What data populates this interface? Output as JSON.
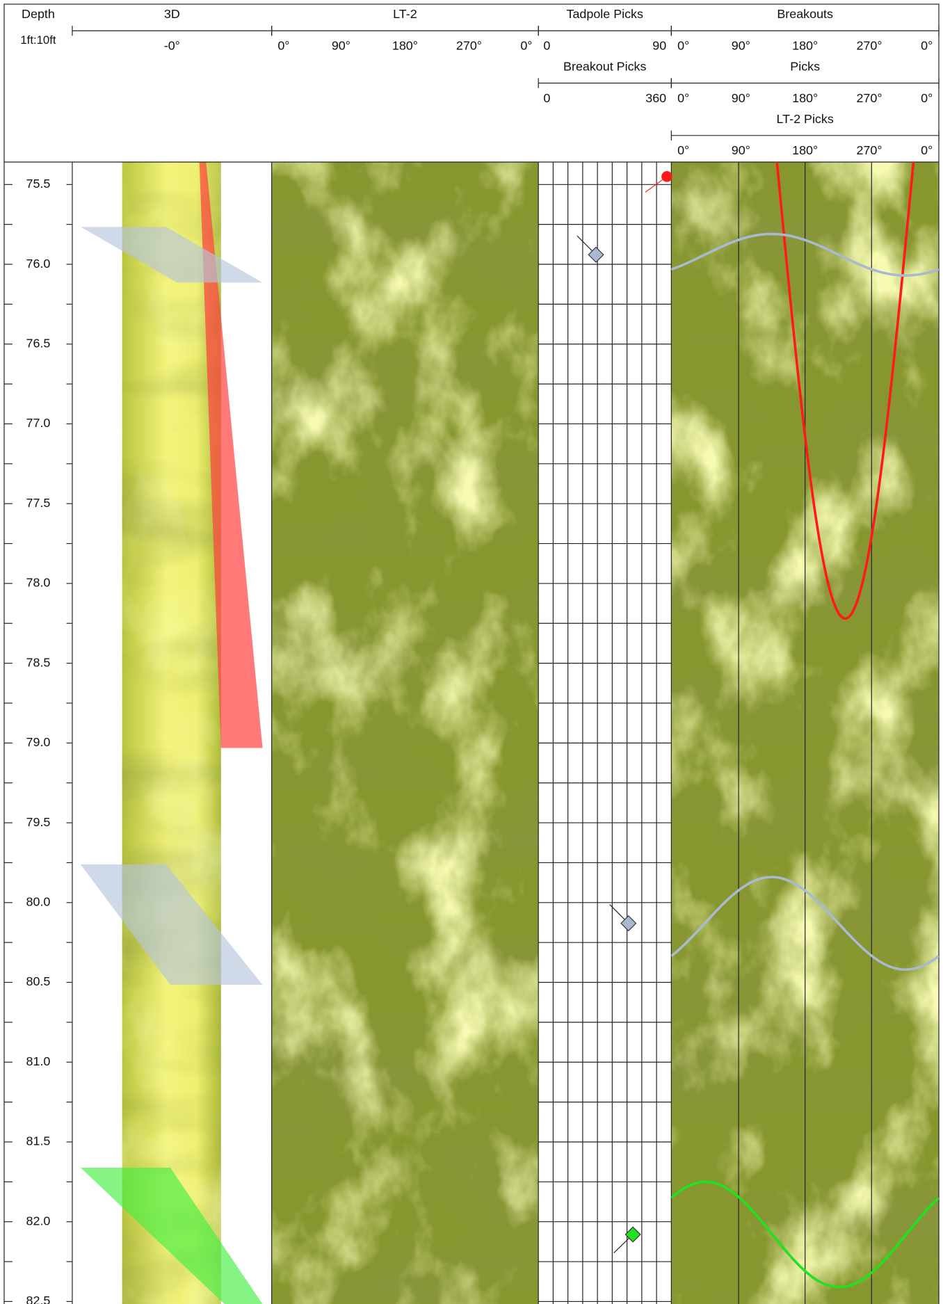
{
  "header": {
    "depth_title": "Depth",
    "depth_scale": "1ft:10ft",
    "scales": [
      {
        "title": "3D",
        "labels": [
          "-0°"
        ]
      },
      {
        "title": "LT-2",
        "labels": [
          "0°",
          "90°",
          "180°",
          "270°",
          "0°"
        ]
      },
      {
        "title": "Tadpole Picks",
        "labels": [
          "0",
          "90"
        ]
      },
      {
        "title": "Breakouts",
        "labels": [
          "0°",
          "90°",
          "180°",
          "270°",
          "0°"
        ]
      },
      {
        "title": "Breakout Picks",
        "labels": [
          "0",
          "360"
        ]
      },
      {
        "title": "Picks",
        "labels": [
          "0°",
          "90°",
          "180°",
          "270°",
          "0°"
        ]
      },
      {
        "title": "LT-2 Picks",
        "labels": [
          "0°",
          "90°",
          "180°",
          "270°",
          "0°"
        ]
      }
    ]
  },
  "depth_labels": [
    "75.5",
    "76.0",
    "76.5",
    "77.0",
    "77.5",
    "78.0",
    "78.5",
    "79.0",
    "79.5",
    "80.0",
    "80.5",
    "81.0",
    "81.5",
    "82.0",
    "82.5"
  ],
  "picks": [
    {
      "depth": 75.45,
      "dip": 87,
      "azimuth": 234,
      "amplitude": 2.77,
      "color": "#ff1a1a",
      "shape": "circle"
    },
    {
      "depth": 75.94,
      "dip": 39,
      "azimuth": 315,
      "amplitude": 0.13,
      "color": "#a9b9cf",
      "shape": "diamond"
    },
    {
      "depth": 80.13,
      "dip": 61,
      "azimuth": 315,
      "amplitude": 0.29,
      "color": "#a9b9cf",
      "shape": "diamond"
    },
    {
      "depth": 82.08,
      "dip": 64,
      "azimuth": 226,
      "amplitude": 0.33,
      "color": "#22e022",
      "shape": "diamond"
    }
  ]
}
